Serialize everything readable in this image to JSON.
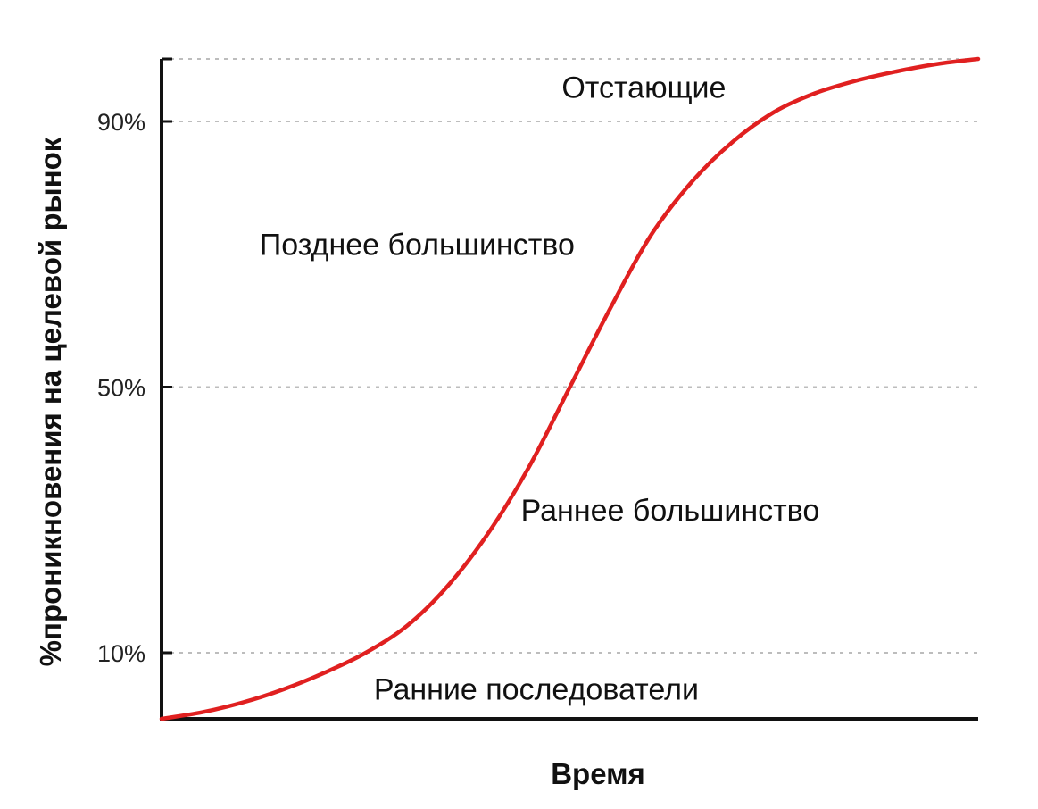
{
  "chart_data": {
    "type": "line",
    "title": "",
    "xlabel": "Время",
    "ylabel": "%проникновения на целевой рынок",
    "ylim": [
      0,
      100
    ],
    "y_ticks": [
      {
        "value": 10,
        "label": "10%"
      },
      {
        "value": 50,
        "label": "50%"
      },
      {
        "value": 90,
        "label": "90%"
      }
    ],
    "grid": "horizontal dotted at y ticks and top",
    "series": [
      {
        "color": "#e02020",
        "x": [
          0,
          5,
          10,
          15,
          20,
          25,
          30,
          35,
          40,
          45,
          50,
          55,
          60,
          65,
          70,
          75,
          80,
          85,
          90,
          95,
          100
        ],
        "y": [
          0,
          1,
          2.5,
          4.5,
          7,
          10,
          14,
          20,
          28,
          38,
          50,
          62,
          73,
          81,
          87,
          91.5,
          94.5,
          96.5,
          98,
          99.2,
          100
        ]
      }
    ],
    "annotations": [
      {
        "text": "Отстающие",
        "x": 49,
        "y": 95.5
      },
      {
        "text": "Позднее большинство",
        "x": 12,
        "y": 71.5
      },
      {
        "text": "Раннее большинство",
        "x": 44,
        "y": 31.5
      },
      {
        "text": "Ранние последователи",
        "x": 26,
        "y": 4.5
      }
    ]
  }
}
